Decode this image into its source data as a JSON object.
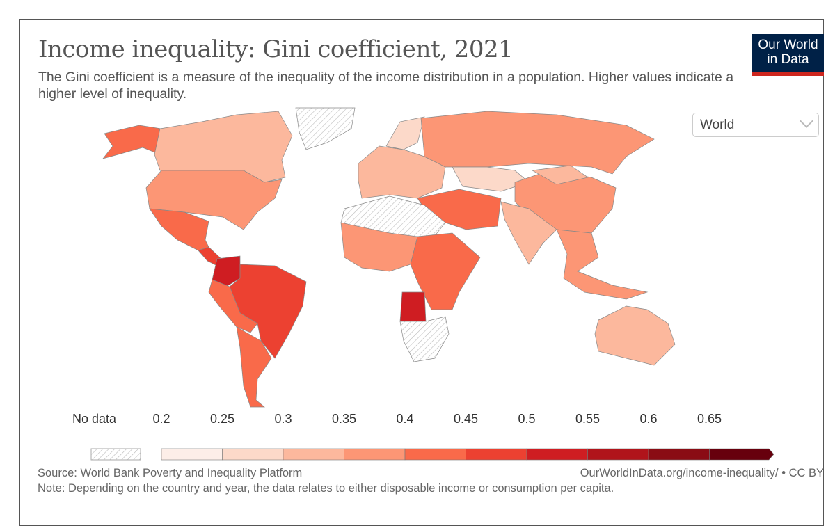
{
  "header": {
    "title": "Income inequality: Gini coefficient, 2021",
    "subtitle": "The Gini coefficient is a measure of the inequality of the income distribution in a population. Higher values indicate a higher level of inequality.",
    "logo_text": "Our World in Data"
  },
  "controls": {
    "region_select": "World"
  },
  "legend": {
    "no_data_label": "No data",
    "ticks": [
      "0.2",
      "0.25",
      "0.3",
      "0.35",
      "0.4",
      "0.45",
      "0.5",
      "0.55",
      "0.6",
      "0.65"
    ],
    "colors": [
      "#fdeee8",
      "#fcd9c9",
      "#fcb89d",
      "#fc9675",
      "#f96a4a",
      "#ec4131",
      "#cf1d22",
      "#b0141b",
      "#8a0c14",
      "#67000d"
    ],
    "no_data_color": "#ffffff"
  },
  "map_data": {
    "type": "choropleth",
    "variable": "Gini coefficient",
    "year": 2021,
    "regions": [
      {
        "name": "Alaska",
        "bin": "0.4-0.45"
      },
      {
        "name": "Canada",
        "bin": "0.3-0.35"
      },
      {
        "name": "Greenland",
        "bin": "no data"
      },
      {
        "name": "United States",
        "bin": "0.35-0.4"
      },
      {
        "name": "Mexico",
        "bin": "0.4-0.45"
      },
      {
        "name": "Central America",
        "bin": "0.45-0.5"
      },
      {
        "name": "Colombia",
        "bin": "0.5-0.55"
      },
      {
        "name": "Brazil",
        "bin": "0.45-0.5"
      },
      {
        "name": "Peru/Bolivia",
        "bin": "0.4-0.45"
      },
      {
        "name": "Argentina/Chile",
        "bin": "0.4-0.45"
      },
      {
        "name": "Europe",
        "bin": "0.3-0.35"
      },
      {
        "name": "Scandinavia",
        "bin": "0.25-0.3"
      },
      {
        "name": "Russia",
        "bin": "0.35-0.4"
      },
      {
        "name": "Kazakhstan",
        "bin": "0.25-0.3"
      },
      {
        "name": "China",
        "bin": "0.35-0.4"
      },
      {
        "name": "Mongolia",
        "bin": "0.3-0.35"
      },
      {
        "name": "Middle East",
        "bin": "0.4-0.45"
      },
      {
        "name": "India",
        "bin": "0.3-0.35"
      },
      {
        "name": "Southeast Asia",
        "bin": "0.35-0.4"
      },
      {
        "name": "North Africa",
        "bin": "no data"
      },
      {
        "name": "West Africa",
        "bin": "0.35-0.4"
      },
      {
        "name": "East/Central Africa",
        "bin": "0.4-0.45"
      },
      {
        "name": "Angola",
        "bin": "0.5-0.55"
      },
      {
        "name": "Southern Africa",
        "bin": "no data"
      },
      {
        "name": "Australia",
        "bin": "0.3-0.35"
      }
    ]
  },
  "footer": {
    "source": "Source: World Bank Poverty and Inequality Platform",
    "url": "OurWorldInData.org/income-inequality/ • CC BY",
    "note": "Note: Depending on the country and year, the data relates to either disposable income or consumption per capita."
  }
}
